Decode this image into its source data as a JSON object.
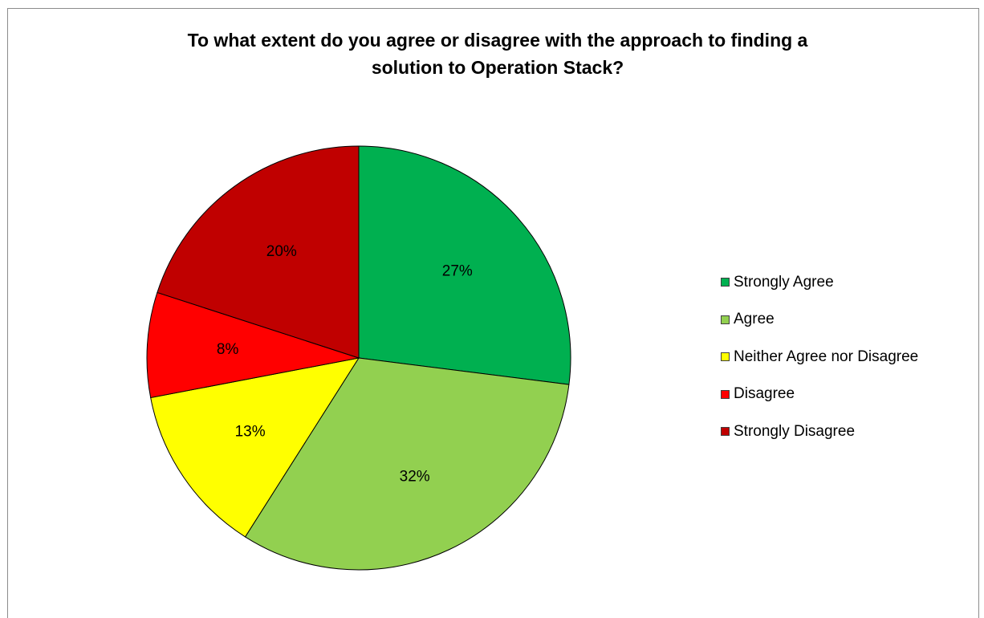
{
  "chart_data": {
    "type": "pie",
    "title": "To what extent do you agree or disagree with the approach to finding a solution to Operation Stack?",
    "title_lines": [
      "To what extent do you agree or disagree with the approach to finding a",
      "solution to Operation Stack?"
    ],
    "categories": [
      "Strongly Agree",
      "Agree",
      "Neither Agree nor Disagree",
      "Disagree",
      "Strongly Disagree"
    ],
    "values": [
      27,
      32,
      13,
      8,
      20
    ],
    "labels": [
      "27%",
      "32%",
      "13%",
      "8%",
      "20%"
    ],
    "colors": [
      "#00b050",
      "#92d050",
      "#ffff00",
      "#ff0000",
      "#c00000"
    ],
    "legend_position": "right",
    "start_angle": "12 o'clock",
    "direction": "clockwise"
  }
}
